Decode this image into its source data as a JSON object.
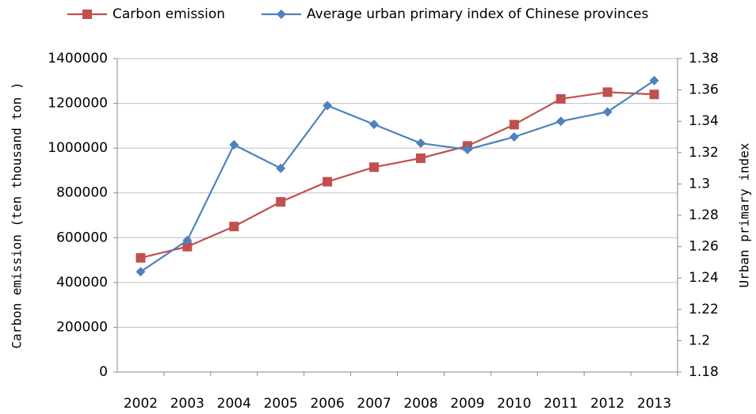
{
  "chart_data": {
    "type": "line",
    "categories": [
      "2002",
      "2003",
      "2004",
      "2005",
      "2006",
      "2007",
      "2008",
      "2009",
      "2010",
      "2011",
      "2012",
      "2013"
    ],
    "series": [
      {
        "name": "Carbon emission",
        "color": "#c0504d",
        "marker": "square",
        "values": [
          510000,
          560000,
          650000,
          760000,
          850000,
          915000,
          955000,
          1010000,
          1105000,
          1220000,
          1250000,
          1240000
        ]
      },
      {
        "name": "Average urban primary index of Chinese provinces",
        "color": "#4f81bd",
        "marker": "diamond",
        "axis": "y2",
        "values": [
          1.244,
          1.264,
          1.325,
          1.31,
          1.35,
          1.338,
          1.326,
          1.322,
          1.33,
          1.34,
          1.346,
          1.366
        ]
      }
    ],
    "y_label": "Carbon emission (ten thousand ton )",
    "y2_label": "Urban primary index",
    "ylim": [
      0,
      1400000
    ],
    "yticks": [
      0,
      200000,
      400000,
      600000,
      800000,
      1000000,
      1200000,
      1400000
    ],
    "y2lim": [
      1.18,
      1.38
    ],
    "y2ticks": [
      1.18,
      1.2,
      1.22,
      1.24,
      1.26,
      1.28,
      1.3,
      1.32,
      1.34,
      1.36,
      1.38
    ],
    "grid": true,
    "legend": "top"
  }
}
